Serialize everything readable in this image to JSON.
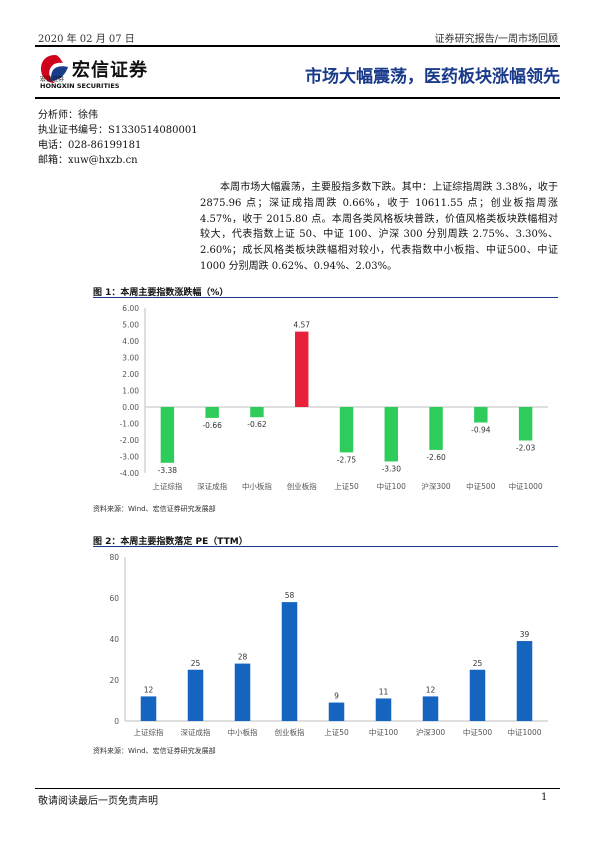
{
  "header": {
    "date": "2020 年 02 月 07 日",
    "report_type": "证券研究报告/一周市场回顾"
  },
  "logo": {
    "name_cn": "宏信证券",
    "name_en": "HONGXIN SECURITIES",
    "mark_text": "宏信证券"
  },
  "title": "市场大幅震荡，医药板块涨幅领先",
  "analyst": {
    "name": "分析师：徐伟",
    "license": "执业证书编号：S1330514080001",
    "phone": "电话：028-86199181",
    "email": "邮箱：xuw@hxzb.cn"
  },
  "summary": "本周市场大幅震荡，主要股指多数下跌。其中：上证综指周跌 3.38%，收于 2875.96 点；深证成指周跌 0.66%，收于 10611.55 点；创业板指周涨 4.57%，收于 2015.80 点。本周各类风格板块普跌，价值风格类板块跌幅相对较大，代表指数上证 50、中证 100、沪深 300 分别周跌 2.75%、3.30%、2.60%；成长风格类板块跌幅相对较小，代表指数中小板指、中证500、中证1000 分别周跌 0.62%、0.94%、2.03%。",
  "figure1": {
    "title": "图 1：本周主要指数涨跌幅（%）",
    "source": "资料来源：Wind、宏信证券研究发展部"
  },
  "figure2": {
    "title": "图 2：本周主要指数落定 PE（TTM）",
    "source": "资料来源：Wind、宏信证券研究发展部"
  },
  "chart_data": [
    {
      "type": "bar",
      "title": "",
      "xlabel": "",
      "ylabel": "",
      "categories": [
        "上证综指",
        "深证成指",
        "中小板指",
        "创业板指",
        "上证50",
        "中证100",
        "沪深300",
        "中证500",
        "中证1000"
      ],
      "values": [
        -3.38,
        -0.66,
        -0.62,
        4.57,
        -2.75,
        -3.3,
        -2.6,
        -0.94,
        -2.03
      ],
      "data_labels": [
        "-3.38",
        "-0.66",
        "-0.62",
        "4.57",
        "-2.75",
        "-3.30",
        "-2.60",
        "-0.94",
        "-2.03"
      ],
      "ylim": [
        -4,
        6
      ],
      "yticks": [
        "6.00",
        "5.00",
        "4.00",
        "3.00",
        "2.00",
        "1.00",
        "0.00",
        "-1.00",
        "-2.00",
        "-3.00",
        "-4.00"
      ],
      "colors": {
        "positive": "#e8213a",
        "negative": "#2ecc5a"
      },
      "grid": false,
      "legend": "none"
    },
    {
      "type": "bar",
      "title": "",
      "xlabel": "",
      "ylabel": "",
      "categories": [
        "上证综指",
        "深证成指",
        "中小板指",
        "创业板指",
        "上证50",
        "中证100",
        "沪深300",
        "中证500",
        "中证1000"
      ],
      "values": [
        12,
        25,
        28,
        58,
        9,
        11,
        12,
        25,
        39
      ],
      "data_labels": [
        "12",
        "25",
        "28",
        "58",
        "9",
        "11",
        "12",
        "25",
        "39"
      ],
      "ylim": [
        0,
        80
      ],
      "yticks": [
        "80",
        "60",
        "40",
        "20",
        "0"
      ],
      "colors": {
        "bar": "#1565c0"
      },
      "grid": false,
      "legend": "none"
    }
  ],
  "footer": {
    "disclaimer": "敬请阅读最后一页免责声明",
    "page_number": "1"
  }
}
